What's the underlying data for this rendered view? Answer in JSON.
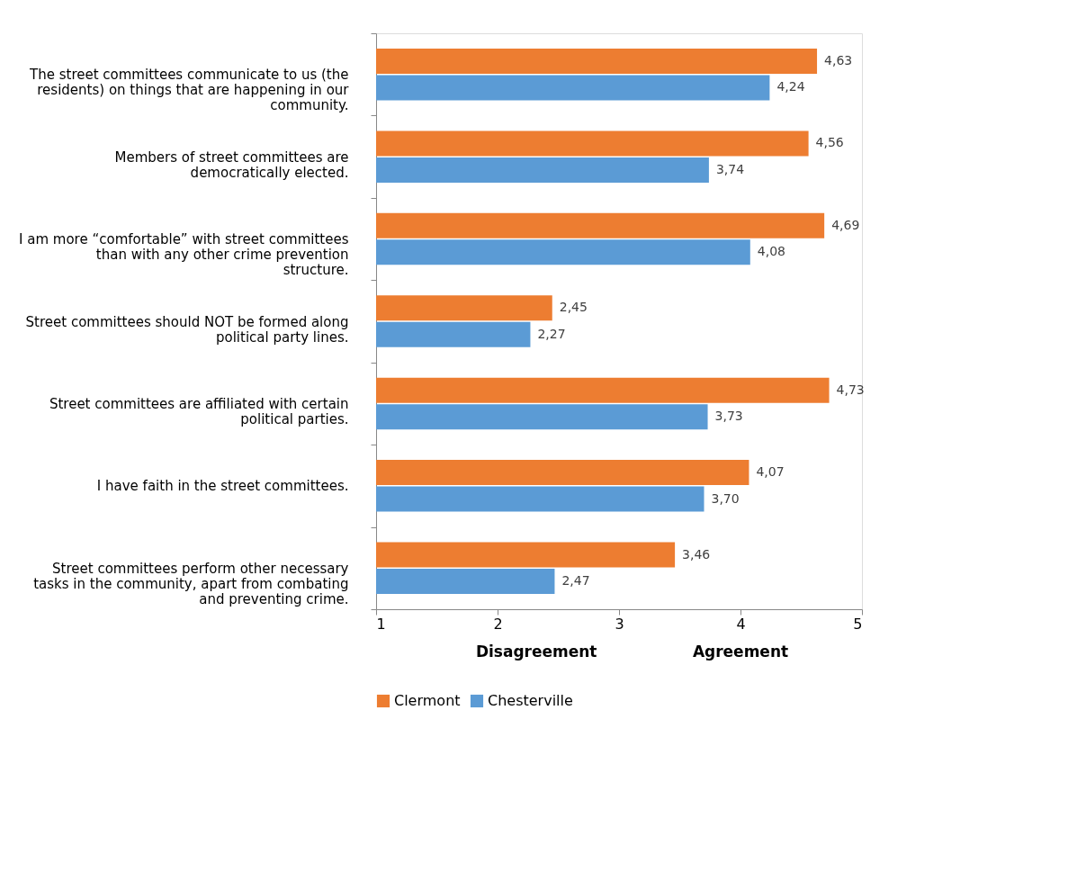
{
  "chart_data": {
    "type": "bar",
    "orientation": "horizontal",
    "categories": [
      "The street committees communicate to us (the residents) on things that are happening in our community.",
      "Members of street committees are democratically elected.",
      "I am more “comfortable” with street committees than with any other crime prevention structure.",
      "Street committees should NOT be formed along political party lines.",
      "Street committees are affiliated with certain political parties.",
      "I have faith in the street committees.",
      "Street committees perform other necessary tasks in the community, apart from combating and preventing crime."
    ],
    "series": [
      {
        "name": "Clermont",
        "color": "#ed7d31",
        "values": [
          4.63,
          4.56,
          4.69,
          2.45,
          4.73,
          4.07,
          3.46
        ],
        "value_labels": [
          "4,63",
          "4,56",
          "4,69",
          "2,45",
          "4,73",
          "4,07",
          "3,46"
        ]
      },
      {
        "name": "Chesterville",
        "color": "#5b9bd5",
        "values": [
          4.24,
          3.74,
          4.08,
          2.27,
          3.73,
          3.7,
          2.47
        ],
        "value_labels": [
          "4,24",
          "3,74",
          "4,08",
          "2,27",
          "3,73",
          "3,70",
          "2,47"
        ]
      }
    ],
    "xlim": [
      1,
      5
    ],
    "xticks": [
      1,
      2,
      3,
      4,
      5
    ],
    "annotations": [
      "Disagreement",
      "Agreement"
    ],
    "grid": false,
    "legend": "bottom"
  }
}
